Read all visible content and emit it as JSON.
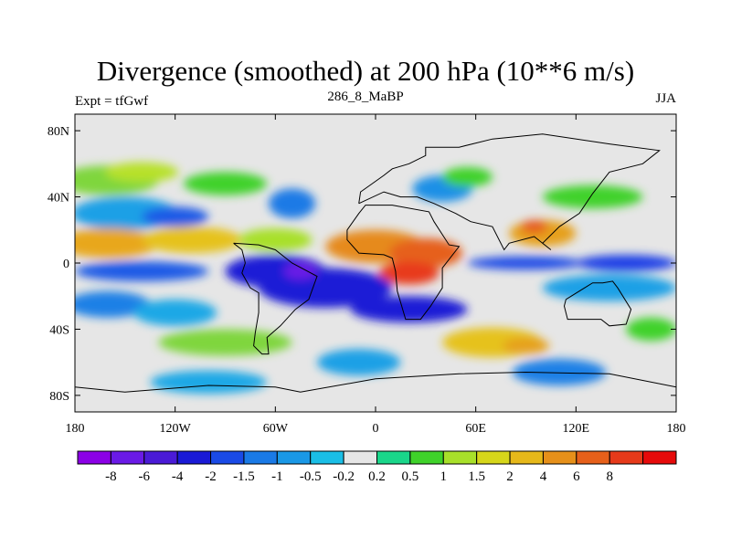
{
  "header": {
    "title": "Divergence (smoothed) at 200 hPa (10**6 m/s)",
    "left_label": "Expt = tfGwf",
    "center_label": "286_8_MaBP",
    "right_label": "JJA"
  },
  "map": {
    "lon_range": [
      -180,
      180
    ],
    "lat_range": [
      -90,
      90
    ],
    "lat_tick_labels": [
      {
        "lat": 80,
        "label": "80N"
      },
      {
        "lat": 40,
        "label": "40N"
      },
      {
        "lat": 0,
        "label": "0"
      },
      {
        "lat": -40,
        "label": "40S"
      },
      {
        "lat": -80,
        "label": "80S"
      }
    ],
    "lon_tick_labels": [
      {
        "lon": -180,
        "label": "180"
      },
      {
        "lon": -120,
        "label": "120W"
      },
      {
        "lon": -60,
        "label": "60W"
      },
      {
        "lon": 0,
        "label": "0"
      },
      {
        "lon": 60,
        "label": "60E"
      },
      {
        "lon": 120,
        "label": "120E"
      },
      {
        "lon": 180,
        "label": "180"
      }
    ],
    "zero_fill_color": "#e6e6e6",
    "blobs": [
      {
        "lon": -160,
        "lat": 50,
        "rx": 30,
        "ry": 9,
        "color": "#7fd63e"
      },
      {
        "lon": -140,
        "lat": 55,
        "rx": 22,
        "ry": 6,
        "color": "#b7e12a"
      },
      {
        "lon": -90,
        "lat": 48,
        "rx": 25,
        "ry": 7,
        "color": "#3fd22a"
      },
      {
        "lon": -150,
        "lat": 30,
        "rx": 32,
        "ry": 10,
        "color": "#1ca0e6"
      },
      {
        "lon": -120,
        "lat": 28,
        "rx": 20,
        "ry": 6,
        "color": "#1a5ae6"
      },
      {
        "lon": -50,
        "lat": 36,
        "rx": 14,
        "ry": 9,
        "color": "#1a7ae6"
      },
      {
        "lon": -160,
        "lat": 12,
        "rx": 30,
        "ry": 9,
        "color": "#e8a71a"
      },
      {
        "lon": -110,
        "lat": 14,
        "rx": 30,
        "ry": 8,
        "color": "#e6c21a"
      },
      {
        "lon": -60,
        "lat": 14,
        "rx": 22,
        "ry": 7,
        "color": "#a8e02a"
      },
      {
        "lon": 0,
        "lat": 10,
        "rx": 30,
        "ry": 10,
        "color": "#e68a1a"
      },
      {
        "lon": 30,
        "lat": 6,
        "rx": 22,
        "ry": 9,
        "color": "#e6601a"
      },
      {
        "lon": 20,
        "lat": -6,
        "rx": 18,
        "ry": 7,
        "color": "#e83a1a"
      },
      {
        "lon": 100,
        "lat": 18,
        "rx": 20,
        "ry": 8,
        "color": "#e6a01a"
      },
      {
        "lon": 95,
        "lat": 22,
        "rx": 8,
        "ry": 4,
        "color": "#e65a1a"
      },
      {
        "lon": 40,
        "lat": 45,
        "rx": 18,
        "ry": 8,
        "color": "#1a90e6"
      },
      {
        "lon": 55,
        "lat": 52,
        "rx": 15,
        "ry": 6,
        "color": "#3fd22a"
      },
      {
        "lon": 130,
        "lat": 40,
        "rx": 30,
        "ry": 7,
        "color": "#3fd22a"
      },
      {
        "lon": -140,
        "lat": -5,
        "rx": 40,
        "ry": 6,
        "color": "#1a5ae6"
      },
      {
        "lon": -60,
        "lat": -5,
        "rx": 30,
        "ry": 10,
        "color": "#1a1ad6"
      },
      {
        "lon": -30,
        "lat": -15,
        "rx": 40,
        "ry": 12,
        "color": "#1a1ad6"
      },
      {
        "lon": -45,
        "lat": -5,
        "rx": 10,
        "ry": 5,
        "color": "#6a1ae6"
      },
      {
        "lon": 20,
        "lat": -28,
        "rx": 35,
        "ry": 8,
        "color": "#1a1ad6"
      },
      {
        "lon": 90,
        "lat": 0,
        "rx": 35,
        "ry": 4,
        "color": "#1a4ae6"
      },
      {
        "lon": 150,
        "lat": 0,
        "rx": 30,
        "ry": 5,
        "color": "#1a40e6"
      },
      {
        "lon": 140,
        "lat": -15,
        "rx": 40,
        "ry": 8,
        "color": "#1aa0e6"
      },
      {
        "lon": -160,
        "lat": -25,
        "rx": 25,
        "ry": 8,
        "color": "#1a80e6"
      },
      {
        "lon": -120,
        "lat": -30,
        "rx": 25,
        "ry": 8,
        "color": "#1aa8e6"
      },
      {
        "lon": -90,
        "lat": -48,
        "rx": 40,
        "ry": 8,
        "color": "#7fd63e"
      },
      {
        "lon": 70,
        "lat": -48,
        "rx": 30,
        "ry": 9,
        "color": "#e6c21a"
      },
      {
        "lon": 90,
        "lat": -50,
        "rx": 14,
        "ry": 5,
        "color": "#e6a01a"
      },
      {
        "lon": -10,
        "lat": -60,
        "rx": 25,
        "ry": 8,
        "color": "#1aa0e6"
      },
      {
        "lon": 110,
        "lat": -66,
        "rx": 28,
        "ry": 8,
        "color": "#1a80e6"
      },
      {
        "lon": -100,
        "lat": -72,
        "rx": 35,
        "ry": 7,
        "color": "#1aa8e6"
      },
      {
        "lon": 165,
        "lat": -40,
        "rx": 15,
        "ry": 7,
        "color": "#3fd22a"
      }
    ]
  },
  "legend": {
    "colors": [
      "#8b00e6",
      "#6a1ae6",
      "#4a1ad6",
      "#1a1ad6",
      "#1a4ae6",
      "#1a7ae6",
      "#1a98e6",
      "#1abee6",
      "#e6e6e6",
      "#1ad68a",
      "#3fd22a",
      "#a8e02a",
      "#d6d61a",
      "#e6b81a",
      "#e6901a",
      "#e6601a",
      "#e63a1a",
      "#e60a0a"
    ],
    "labels": [
      "-8",
      "-6",
      "-4",
      "-2",
      "-1.5",
      "-1",
      "-0.5",
      "-0.2",
      "0.2",
      "0.5",
      "1",
      "1.5",
      "2",
      "4",
      "6",
      "8"
    ]
  }
}
